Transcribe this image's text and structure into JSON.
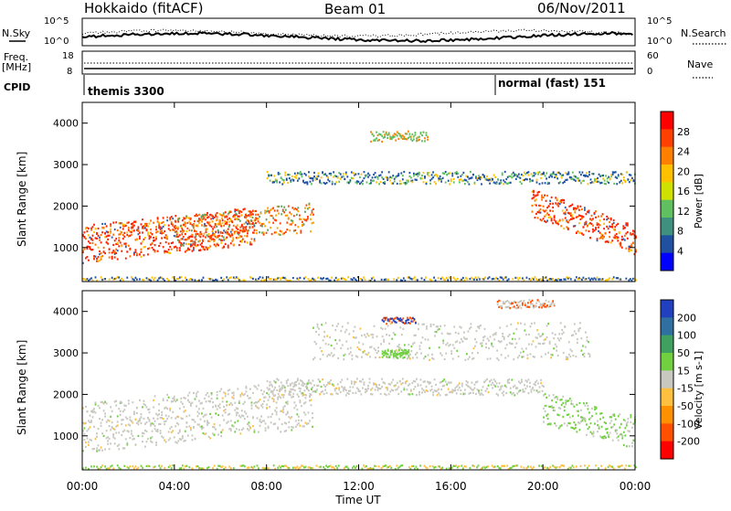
{
  "header": {
    "station": "Hokkaido (fitACF)",
    "beam": "Beam 01",
    "date": "06/Nov/2011"
  },
  "panels": {
    "nsky_label": "N.Sky",
    "nsky_ticks": [
      "10^5",
      "10^0"
    ],
    "nsearch_label": "N.Search",
    "nsearch_ticks": [
      "10^5",
      "10^0"
    ],
    "freq_label": "Freq.",
    "freq_unit": "[MHz]",
    "freq_ticks": [
      "18",
      "8"
    ],
    "nave_label": "Nave",
    "nave_ticks": [
      "60",
      "0"
    ],
    "cpid_label": "CPID",
    "cpid_programs": [
      "themis 3300",
      "normal (fast) 151"
    ]
  },
  "x_axis": {
    "label": "Time UT",
    "ticks": [
      "00:00",
      "04:00",
      "08:00",
      "12:00",
      "16:00",
      "20:00",
      "00:00"
    ]
  },
  "chart_data": [
    {
      "type": "heatmap",
      "variable": "power",
      "ylabel": "Slant Range [km]",
      "xlabel": "",
      "x_range": [
        0,
        24
      ],
      "ylim": [
        180,
        4500
      ],
      "y_ticks": [
        "1000",
        "2000",
        "3000",
        "4000"
      ],
      "colorbar_label": "Power [dB]",
      "colorbar_ticks": [
        "28",
        "24",
        "20",
        "16",
        "12",
        "8",
        "4"
      ],
      "colorbar_colors": [
        "#ff0000",
        "#ff4000",
        "#ff8000",
        "#ffc000",
        "#d0e000",
        "#60c060",
        "#409080",
        "#2050a0",
        "#0000ff"
      ]
    },
    {
      "type": "heatmap",
      "variable": "velocity",
      "ylabel": "Slant Range [km]",
      "xlabel": "Time UT",
      "x_range": [
        0,
        24
      ],
      "ylim": [
        180,
        4500
      ],
      "y_ticks": [
        "1000",
        "2000",
        "3000",
        "4000"
      ],
      "colorbar_label": "Velocity [m s-1]",
      "colorbar_ticks": [
        "200",
        "100",
        "50",
        "15",
        "-15",
        "-50",
        "-100",
        "-200"
      ],
      "colorbar_colors": [
        "#2040c0",
        "#3070a0",
        "#40a060",
        "#70d040",
        "#c8c8c0",
        "#ffc040",
        "#ff9000",
        "#ff5000",
        "#ff0000"
      ]
    }
  ]
}
